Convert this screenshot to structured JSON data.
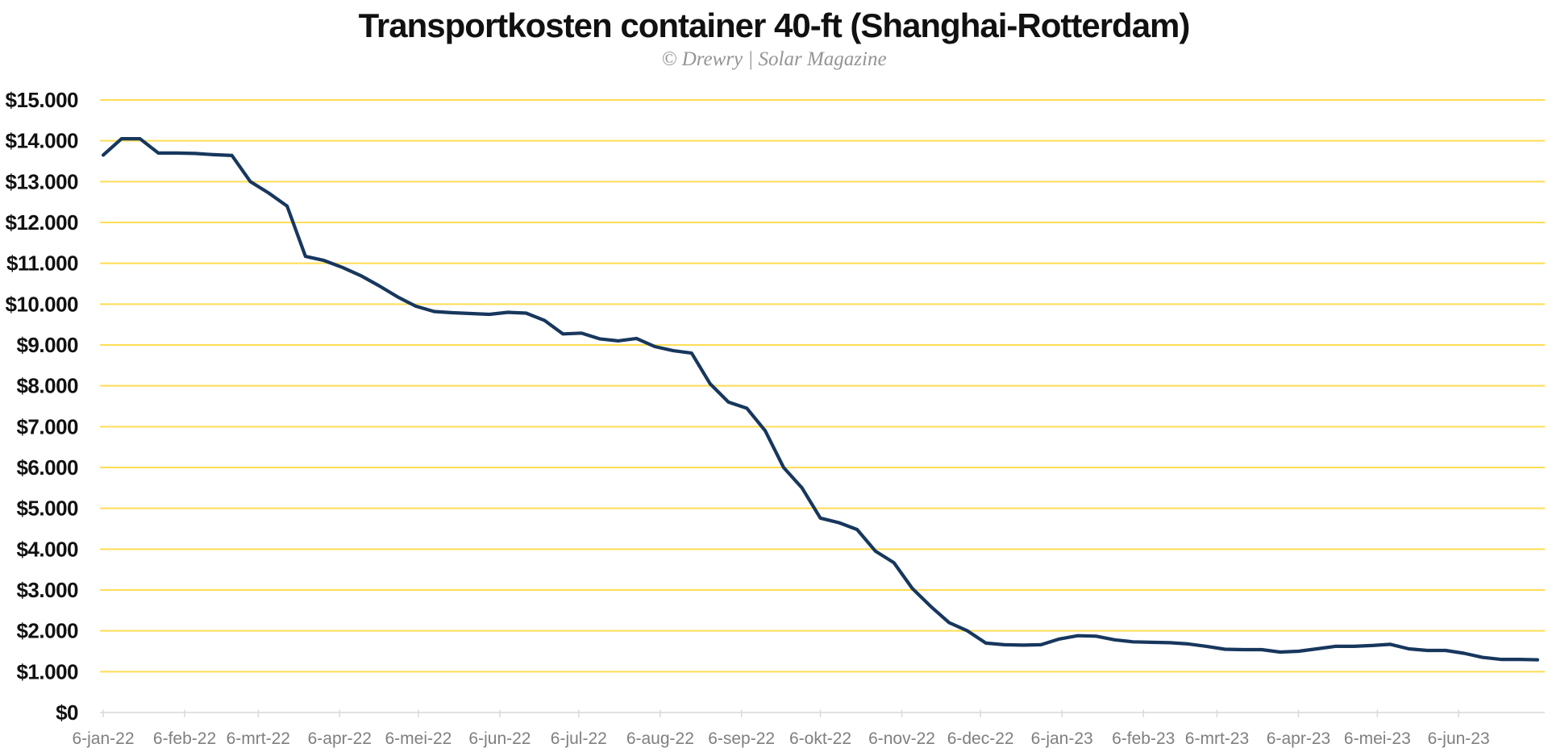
{
  "header": {
    "title": "Transportkosten container 40-ft (Shanghai-Rotterdam)",
    "subtitle": "© Drewry | Solar Magazine"
  },
  "chart_data": {
    "type": "line",
    "title": "Transportkosten container 40-ft (Shanghai-Rotterdam)",
    "subtitle": "© Drewry | Solar Magazine",
    "xlabel": "",
    "ylabel": "",
    "ylim": [
      0,
      15000
    ],
    "grid": "horizontal-only",
    "legend": "none",
    "x_unit": "week",
    "colors": {
      "line": "#17375d",
      "grid": "#ffdd55",
      "axis": "#d9d9d9",
      "y_label": "#111111",
      "x_label": "#7f7f7f",
      "title": "#111111",
      "subtitle": "#949494"
    },
    "y_ticks": [
      {
        "label": "$15.000",
        "value": 15000
      },
      {
        "label": "$14.000",
        "value": 14000
      },
      {
        "label": "$13.000",
        "value": 13000
      },
      {
        "label": "$12.000",
        "value": 12000
      },
      {
        "label": "$11.000",
        "value": 11000
      },
      {
        "label": "$10.000",
        "value": 10000
      },
      {
        "label": "$9.000",
        "value": 9000
      },
      {
        "label": "$8.000",
        "value": 8000
      },
      {
        "label": "$7.000",
        "value": 7000
      },
      {
        "label": "$6.000",
        "value": 6000
      },
      {
        "label": "$5.000",
        "value": 5000
      },
      {
        "label": "$4.000",
        "value": 4000
      },
      {
        "label": "$3.000",
        "value": 3000
      },
      {
        "label": "$2.000",
        "value": 2000
      },
      {
        "label": "$1.000",
        "value": 1000
      },
      {
        "label": "$0",
        "value": 0
      }
    ],
    "x_ticks": [
      {
        "label": "6-jan-22",
        "week": 0
      },
      {
        "label": "6-feb-22",
        "week": 4.43
      },
      {
        "label": "6-mrt-22",
        "week": 8.43
      },
      {
        "label": "6-apr-22",
        "week": 12.86
      },
      {
        "label": "6-mei-22",
        "week": 17.14
      },
      {
        "label": "6-jun-22",
        "week": 21.57
      },
      {
        "label": "6-jul-22",
        "week": 25.86
      },
      {
        "label": "6-aug-22",
        "week": 30.29
      },
      {
        "label": "6-sep-22",
        "week": 34.71
      },
      {
        "label": "6-okt-22",
        "week": 39.0
      },
      {
        "label": "6-nov-22",
        "week": 43.43
      },
      {
        "label": "6-dec-22",
        "week": 47.71
      },
      {
        "label": "6-jan-23",
        "week": 52.14
      },
      {
        "label": "6-feb-23",
        "week": 56.57
      },
      {
        "label": "6-mrt-23",
        "week": 60.57
      },
      {
        "label": "6-apr-23",
        "week": 65.0
      },
      {
        "label": "6-mei-23",
        "week": 69.29
      },
      {
        "label": "6-jun-23",
        "week": 73.71
      }
    ],
    "series": [
      {
        "name": "Transportkosten container 40-ft (Shanghai-Rotterdam)",
        "color": "#17375d",
        "interval": "weekly",
        "values": [
          13650,
          14050,
          14050,
          13700,
          13700,
          13690,
          13660,
          13640,
          13000,
          12720,
          12400,
          11170,
          11070,
          10900,
          10700,
          10450,
          10180,
          9950,
          9820,
          9790,
          9770,
          9750,
          9800,
          9780,
          9600,
          9270,
          9290,
          9150,
          9100,
          9160,
          8960,
          8860,
          8800,
          8050,
          7600,
          7450,
          6900,
          6000,
          5500,
          4760,
          4650,
          4480,
          3950,
          3670,
          3040,
          2600,
          2200,
          2000,
          1700,
          1660,
          1650,
          1660,
          1800,
          1880,
          1870,
          1780,
          1730,
          1720,
          1710,
          1680,
          1620,
          1550,
          1540,
          1540,
          1480,
          1500,
          1560,
          1620,
          1620,
          1640,
          1670,
          1560,
          1520,
          1520,
          1450,
          1350,
          1300,
          1300,
          1290
        ]
      }
    ]
  }
}
